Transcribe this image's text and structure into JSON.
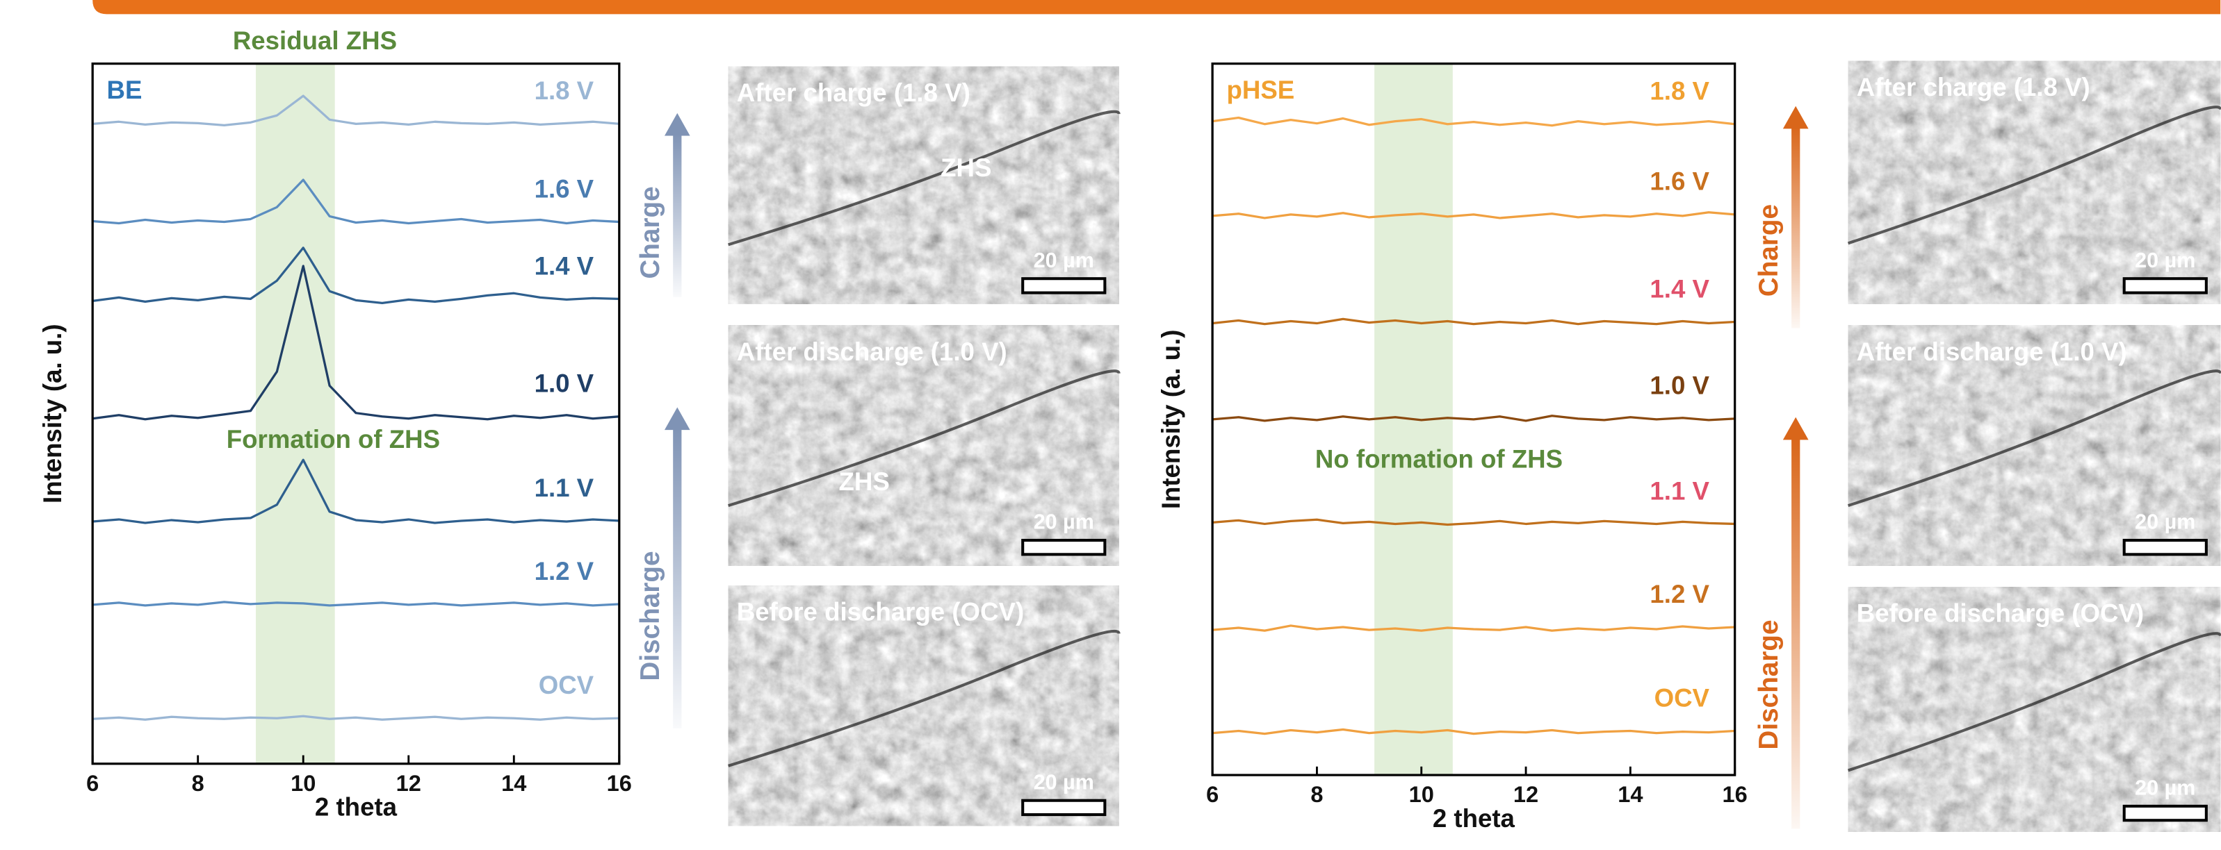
{
  "chart_data": [
    {
      "type": "line",
      "panel_label": "BE",
      "annotations": [
        "Residual ZHS",
        "Formation of ZHS"
      ],
      "annotation_color": "#5a8a3c",
      "highlight": [
        9.1,
        10.6
      ],
      "highlight_color": "#e2efd9",
      "x_label": "2 theta",
      "y_label": "Intensity (a. u.)",
      "x": [
        6,
        6.5,
        7,
        7.5,
        8,
        8.5,
        9,
        9.5,
        10,
        10.5,
        11,
        11.5,
        12,
        12.5,
        13,
        13.5,
        14,
        14.5,
        15,
        15.5,
        16
      ],
      "xlim": [
        6,
        16
      ],
      "xticks": [
        6,
        8,
        10,
        12,
        14,
        16
      ],
      "ylim": [
        0,
        100
      ],
      "panel_label_color": "#2e75b6",
      "series": [
        {
          "name": "1.8 V",
          "color": "#9ab6d4",
          "label_color": "#9ab6d4",
          "values": [
            91.4,
            91.7,
            91.3,
            91.6,
            91.5,
            91.2,
            91.6,
            92.6,
            95.4,
            92.0,
            91.4,
            91.6,
            91.3,
            91.7,
            91.5,
            91.4,
            91.6,
            91.3,
            91.5,
            91.7,
            91.4
          ]
        },
        {
          "name": "1.6 V",
          "color": "#5b8dc0",
          "label_color": "#4a7cb0",
          "values": [
            77.5,
            77.2,
            77.7,
            77.3,
            77.6,
            77.4,
            77.8,
            79.5,
            83.4,
            78.2,
            77.3,
            77.6,
            77.2,
            77.5,
            77.8,
            77.3,
            77.5,
            77.7,
            77.2,
            77.6,
            77.4
          ]
        },
        {
          "name": "1.4 V",
          "color": "#2e5f8e",
          "label_color": "#2e5f8e",
          "values": [
            66.1,
            66.6,
            66.0,
            66.5,
            66.2,
            66.7,
            66.4,
            69.0,
            73.7,
            67.5,
            66.2,
            65.8,
            66.3,
            66.0,
            66.4,
            66.9,
            67.2,
            66.6,
            66.3,
            66.5,
            66.4
          ]
        },
        {
          "name": "1.0 V",
          "color": "#1f3e66",
          "label_color": "#1f3e66",
          "values": [
            49.3,
            49.8,
            49.2,
            49.7,
            49.4,
            49.9,
            50.4,
            56.0,
            71.1,
            54.0,
            50.1,
            49.6,
            49.3,
            49.8,
            49.5,
            49.2,
            49.7,
            49.4,
            49.8,
            49.3,
            49.6
          ]
        },
        {
          "name": "1.1 V",
          "color": "#2e5f8e",
          "label_color": "#2e5f8e",
          "values": [
            34.6,
            34.9,
            34.4,
            34.8,
            34.5,
            34.9,
            35.1,
            37.0,
            43.4,
            36.0,
            34.8,
            34.5,
            34.9,
            34.4,
            34.7,
            34.9,
            34.5,
            34.8,
            34.6,
            34.9,
            34.7
          ]
        },
        {
          "name": "1.2 V",
          "color": "#5b8dc0",
          "label_color": "#4a7cb0",
          "values": [
            22.7,
            23.0,
            22.6,
            22.9,
            22.7,
            23.1,
            22.8,
            23.0,
            22.9,
            22.6,
            22.8,
            23.0,
            22.7,
            22.9,
            22.6,
            22.8,
            23.0,
            22.7,
            22.9,
            22.6,
            22.8
          ]
        },
        {
          "name": "OCV",
          "color": "#9ab6d4",
          "label_color": "#9ab6d4",
          "values": [
            6.4,
            6.6,
            6.3,
            6.7,
            6.5,
            6.4,
            6.6,
            6.5,
            6.8,
            6.4,
            6.6,
            6.3,
            6.5,
            6.7,
            6.4,
            6.6,
            6.5,
            6.3,
            6.6,
            6.4,
            6.5
          ]
        }
      ]
    },
    {
      "type": "line",
      "panel_label": "pHSE",
      "annotations": [
        "No formation of ZHS"
      ],
      "annotation_color": "#5a8a3c",
      "highlight": [
        9.1,
        10.6
      ],
      "highlight_color": "#e2efd9",
      "x_label": "2 theta",
      "y_label": "Intensity (a. u.)",
      "x": [
        6,
        6.5,
        7,
        7.5,
        8,
        8.5,
        9,
        9.5,
        10,
        10.5,
        11,
        11.5,
        12,
        12.5,
        13,
        13.5,
        14,
        14.5,
        15,
        15.5,
        16
      ],
      "xlim": [
        6,
        16
      ],
      "xticks": [
        6,
        8,
        10,
        12,
        14,
        16
      ],
      "ylim": [
        0,
        100
      ],
      "panel_label_color": "#f0a030",
      "series": [
        {
          "name": "1.8 V",
          "color": "#f5a84a",
          "label_color": "#f0a030",
          "values": [
            91.9,
            92.4,
            91.5,
            92.1,
            91.6,
            92.3,
            91.4,
            91.9,
            92.2,
            91.5,
            91.8,
            91.4,
            91.7,
            91.3,
            91.9,
            91.5,
            91.8,
            91.4,
            91.6,
            91.9,
            91.5
          ]
        },
        {
          "name": "1.6 V",
          "color": "#f0a040",
          "label_color": "#c8701e",
          "values": [
            78.6,
            78.9,
            78.3,
            78.8,
            78.5,
            79.0,
            78.4,
            78.7,
            78.9,
            78.5,
            78.8,
            78.3,
            78.6,
            78.9,
            78.4,
            78.7,
            78.5,
            78.9,
            78.6,
            79.1,
            78.8
          ]
        },
        {
          "name": "1.4 V",
          "color": "#c0701c",
          "label_color": "#e0506a",
          "values": [
            63.5,
            63.9,
            63.4,
            63.8,
            63.5,
            64.1,
            63.6,
            63.9,
            63.5,
            63.8,
            63.4,
            63.7,
            63.5,
            63.9,
            63.4,
            63.8,
            63.6,
            63.4,
            63.8,
            63.5,
            63.7
          ]
        },
        {
          "name": "1.0 V",
          "color": "#8b4a10",
          "label_color": "#7a4010",
          "values": [
            50.0,
            50.3,
            49.8,
            50.2,
            49.9,
            50.4,
            50.0,
            50.3,
            49.9,
            50.2,
            50.0,
            50.4,
            49.8,
            50.5,
            50.1,
            49.9,
            50.3,
            50.0,
            50.2,
            49.9,
            50.1
          ]
        },
        {
          "name": "1.1 V",
          "color": "#c0701c",
          "label_color": "#e0506a",
          "values": [
            35.5,
            35.8,
            35.3,
            35.7,
            35.9,
            35.4,
            35.6,
            35.3,
            35.5,
            35.2,
            35.4,
            35.7,
            35.3,
            35.6,
            35.4,
            35.7,
            35.5,
            35.3,
            35.6,
            35.4,
            35.3
          ]
        },
        {
          "name": "1.2 V",
          "color": "#f0a040",
          "label_color": "#c8701e",
          "values": [
            20.4,
            20.7,
            20.3,
            21.0,
            20.5,
            20.8,
            20.4,
            20.6,
            20.3,
            20.7,
            20.5,
            20.4,
            20.8,
            20.3,
            20.6,
            20.4,
            20.7,
            20.5,
            20.9,
            20.6,
            20.8
          ]
        },
        {
          "name": "OCV",
          "color": "#f0a040",
          "label_color": "#f0a030",
          "values": [
            5.9,
            6.2,
            5.8,
            6.3,
            6.0,
            6.4,
            5.9,
            6.2,
            6.0,
            6.3,
            5.8,
            6.1,
            6.0,
            6.3,
            5.9,
            6.1,
            6.2,
            5.9,
            6.1,
            6.0,
            6.2
          ]
        }
      ]
    }
  ],
  "micrographs": [
    [
      {
        "title": "After charge (1.8 V)",
        "annotation": "ZHS",
        "scale_bar": "20 µm"
      },
      {
        "title": "After discharge (1.0 V)",
        "annotation": "ZHS",
        "scale_bar": "20 µm"
      },
      {
        "title": "Before discharge (OCV)",
        "scale_bar": "20 µm"
      }
    ],
    [
      {
        "title": "After charge (1.8 V)",
        "scale_bar": "20 µm"
      },
      {
        "title": "After discharge (1.0 V)",
        "scale_bar": "20 µm"
      },
      {
        "title": "Before discharge (OCV)",
        "scale_bar": "20 µm"
      }
    ]
  ],
  "arrows": [
    {
      "labels": [
        "Charge",
        "Discharge"
      ],
      "color": "#7f93b5"
    },
    {
      "labels": [
        "Charge",
        "Discharge"
      ],
      "color": "#d9661a"
    }
  ]
}
